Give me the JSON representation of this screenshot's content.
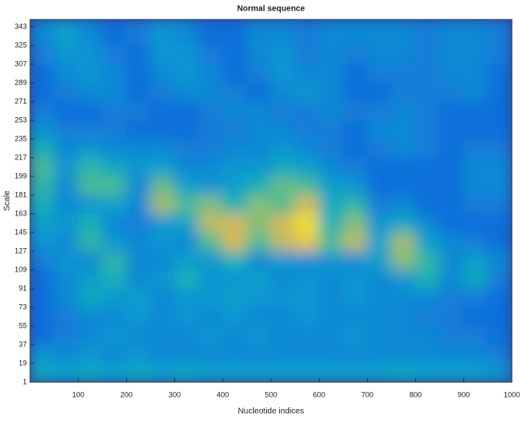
{
  "chart_data": {
    "type": "heatmap",
    "title": "Normal sequence",
    "xlabel": "Nucleotide indices",
    "ylabel": "Scale",
    "colormap": "parula",
    "clim": [
      0,
      1
    ],
    "xlim": [
      0,
      1000
    ],
    "xticks": [
      100,
      200,
      300,
      400,
      500,
      600,
      700,
      800,
      900,
      1000
    ],
    "ylim": [
      1,
      350
    ],
    "yticks": [
      1,
      19,
      37,
      55,
      73,
      91,
      109,
      127,
      145,
      163,
      181,
      199,
      217,
      235,
      253,
      271,
      289,
      307,
      325,
      343
    ],
    "xbins": [
      0,
      50,
      100,
      150,
      200,
      250,
      300,
      350,
      400,
      450,
      500,
      550,
      600,
      650,
      700,
      750,
      800,
      850,
      900,
      950,
      1000
    ],
    "ybins": [
      1,
      19,
      37,
      55,
      73,
      91,
      109,
      127,
      145,
      163,
      181,
      199,
      217,
      235,
      253,
      271,
      289,
      307,
      325,
      343,
      350
    ],
    "z": [
      [
        0.45,
        0.4,
        0.45,
        0.4,
        0.45,
        0.4,
        0.45,
        0.4,
        0.4,
        0.4,
        0.4,
        0.4,
        0.4,
        0.4,
        0.4,
        0.45,
        0.4,
        0.4,
        0.4,
        0.35
      ],
      [
        0.35,
        0.3,
        0.35,
        0.3,
        0.35,
        0.3,
        0.3,
        0.3,
        0.3,
        0.3,
        0.3,
        0.3,
        0.3,
        0.3,
        0.3,
        0.3,
        0.3,
        0.3,
        0.3,
        0.25
      ],
      [
        0.2,
        0.25,
        0.3,
        0.35,
        0.3,
        0.3,
        0.3,
        0.35,
        0.3,
        0.35,
        0.3,
        0.3,
        0.3,
        0.35,
        0.3,
        0.3,
        0.3,
        0.25,
        0.25,
        0.2
      ],
      [
        0.2,
        0.25,
        0.3,
        0.3,
        0.35,
        0.3,
        0.35,
        0.3,
        0.35,
        0.3,
        0.3,
        0.35,
        0.3,
        0.3,
        0.3,
        0.3,
        0.25,
        0.25,
        0.2,
        0.2
      ],
      [
        0.2,
        0.3,
        0.45,
        0.35,
        0.4,
        0.3,
        0.35,
        0.35,
        0.4,
        0.35,
        0.35,
        0.35,
        0.3,
        0.35,
        0.3,
        0.3,
        0.3,
        0.25,
        0.25,
        0.2
      ],
      [
        0.2,
        0.3,
        0.4,
        0.5,
        0.3,
        0.35,
        0.5,
        0.35,
        0.35,
        0.4,
        0.3,
        0.35,
        0.3,
        0.35,
        0.3,
        0.35,
        0.5,
        0.3,
        0.45,
        0.25
      ],
      [
        0.25,
        0.35,
        0.3,
        0.55,
        0.3,
        0.3,
        0.4,
        0.35,
        0.5,
        0.3,
        0.35,
        0.3,
        0.35,
        0.3,
        0.4,
        0.7,
        0.55,
        0.3,
        0.4,
        0.3
      ],
      [
        0.35,
        0.3,
        0.55,
        0.35,
        0.3,
        0.35,
        0.3,
        0.6,
        0.85,
        0.6,
        0.8,
        0.9,
        0.6,
        0.8,
        0.4,
        0.75,
        0.4,
        0.3,
        0.25,
        0.2
      ],
      [
        0.4,
        0.35,
        0.5,
        0.3,
        0.25,
        0.35,
        0.4,
        0.8,
        0.85,
        0.7,
        0.85,
        0.95,
        0.5,
        0.7,
        0.35,
        0.45,
        0.3,
        0.2,
        0.2,
        0.2
      ],
      [
        0.5,
        0.3,
        0.35,
        0.4,
        0.3,
        0.75,
        0.6,
        0.7,
        0.5,
        0.7,
        0.6,
        0.85,
        0.45,
        0.55,
        0.25,
        0.3,
        0.2,
        0.2,
        0.25,
        0.25
      ],
      [
        0.55,
        0.3,
        0.6,
        0.6,
        0.3,
        0.65,
        0.4,
        0.35,
        0.4,
        0.5,
        0.65,
        0.6,
        0.4,
        0.35,
        0.2,
        0.2,
        0.2,
        0.2,
        0.3,
        0.3
      ],
      [
        0.6,
        0.35,
        0.55,
        0.45,
        0.35,
        0.4,
        0.3,
        0.3,
        0.35,
        0.35,
        0.45,
        0.4,
        0.3,
        0.25,
        0.2,
        0.2,
        0.2,
        0.2,
        0.3,
        0.3
      ],
      [
        0.5,
        0.3,
        0.35,
        0.3,
        0.3,
        0.3,
        0.25,
        0.25,
        0.3,
        0.3,
        0.35,
        0.3,
        0.25,
        0.2,
        0.25,
        0.3,
        0.25,
        0.2,
        0.25,
        0.25
      ],
      [
        0.35,
        0.25,
        0.25,
        0.25,
        0.2,
        0.2,
        0.2,
        0.25,
        0.25,
        0.3,
        0.3,
        0.25,
        0.25,
        0.2,
        0.3,
        0.3,
        0.25,
        0.2,
        0.2,
        0.2
      ],
      [
        0.25,
        0.2,
        0.2,
        0.25,
        0.25,
        0.2,
        0.2,
        0.25,
        0.3,
        0.3,
        0.25,
        0.25,
        0.3,
        0.25,
        0.25,
        0.3,
        0.25,
        0.2,
        0.2,
        0.2
      ],
      [
        0.2,
        0.25,
        0.3,
        0.3,
        0.2,
        0.25,
        0.3,
        0.3,
        0.25,
        0.2,
        0.3,
        0.35,
        0.3,
        0.2,
        0.2,
        0.25,
        0.25,
        0.25,
        0.3,
        0.2
      ],
      [
        0.2,
        0.3,
        0.35,
        0.3,
        0.2,
        0.3,
        0.35,
        0.3,
        0.2,
        0.25,
        0.35,
        0.3,
        0.3,
        0.2,
        0.25,
        0.25,
        0.25,
        0.3,
        0.3,
        0.2
      ],
      [
        0.25,
        0.35,
        0.35,
        0.25,
        0.2,
        0.35,
        0.35,
        0.25,
        0.2,
        0.3,
        0.35,
        0.25,
        0.3,
        0.25,
        0.3,
        0.3,
        0.25,
        0.3,
        0.3,
        0.25
      ],
      [
        0.3,
        0.4,
        0.3,
        0.2,
        0.25,
        0.35,
        0.3,
        0.2,
        0.2,
        0.3,
        0.3,
        0.25,
        0.3,
        0.3,
        0.3,
        0.3,
        0.25,
        0.3,
        0.3,
        0.25
      ],
      [
        0.3,
        0.4,
        0.3,
        0.2,
        0.25,
        0.35,
        0.3,
        0.2,
        0.2,
        0.3,
        0.3,
        0.25,
        0.3,
        0.3,
        0.3,
        0.3,
        0.25,
        0.3,
        0.3,
        0.25
      ]
    ]
  }
}
